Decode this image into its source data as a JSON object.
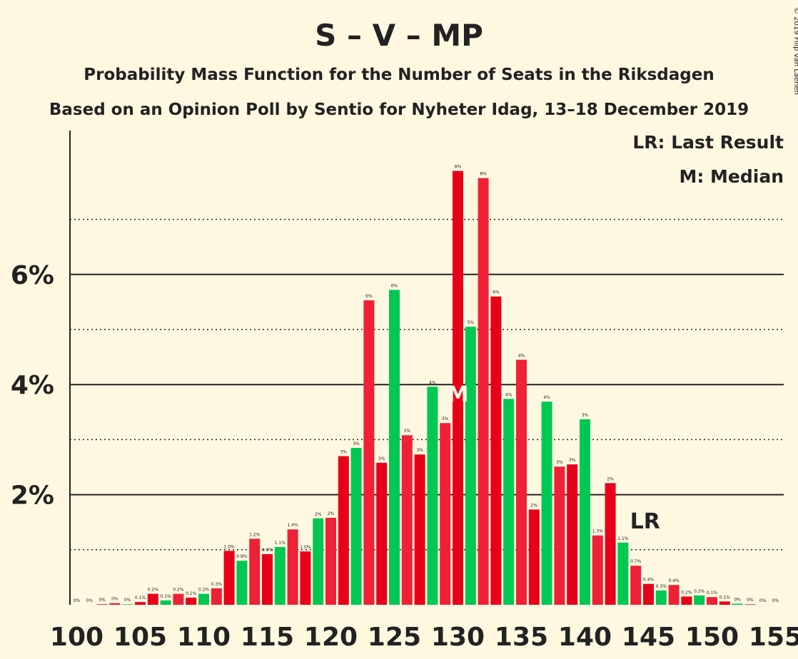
{
  "chart_data": {
    "type": "bar",
    "title": "S – V – MP",
    "subtitle1": "Probability Mass Function for the Number of Seats in the Riksdagen",
    "subtitle2": "Based on an Opinion Poll by Sentio for Nyheter Idag, 13–18 December 2019",
    "copyright": "© 2019 Filip van Laenen",
    "legend": [
      "LR: Last Result",
      "M: Median"
    ],
    "xlim": [
      100,
      155
    ],
    "ylim": [
      0,
      8.5
    ],
    "x_ticks": [
      100,
      105,
      110,
      115,
      120,
      125,
      130,
      135,
      140,
      145,
      150,
      155
    ],
    "y_ticks": [
      2,
      4,
      6
    ],
    "y_tick_labels": [
      "2%",
      "4%",
      "6%"
    ],
    "grid_solid": [
      2,
      4,
      6
    ],
    "grid_dotted": [
      1,
      3,
      5,
      7
    ],
    "median": 130,
    "median_label": "M",
    "last_result": 144,
    "last_result_label": "LR",
    "colors": {
      "red": "#e8001a",
      "red_alt": "#ee2137",
      "green": "#00c853",
      "background": "#fff8e1",
      "text": "#222222"
    },
    "seats": [
      100,
      101,
      102,
      103,
      104,
      105,
      106,
      107,
      108,
      109,
      110,
      111,
      112,
      113,
      114,
      115,
      116,
      117,
      118,
      119,
      120,
      121,
      122,
      123,
      124,
      125,
      126,
      127,
      128,
      129,
      130,
      131,
      132,
      133,
      134,
      135,
      136,
      137,
      138,
      139,
      140,
      141,
      142,
      143,
      144,
      145,
      146,
      147,
      148,
      149,
      150,
      151,
      152,
      153,
      154,
      155
    ],
    "values": [
      0,
      0,
      0.01,
      0.03,
      0.01,
      0.05,
      0.2,
      0.08,
      0.2,
      0.13,
      0.2,
      0.3,
      0.98,
      0.8,
      1.2,
      0.92,
      1.05,
      1.37,
      0.97,
      1.57,
      1.58,
      2.7,
      2.85,
      5.53,
      2.58,
      5.72,
      3.08,
      2.73,
      3.96,
      3.3,
      7.88,
      5.05,
      7.75,
      5.6,
      3.74,
      4.45,
      1.73,
      3.69,
      2.51,
      2.55,
      3.37,
      1.26,
      2.21,
      1.13,
      0.71,
      0.38,
      0.26,
      0.36,
      0.15,
      0.17,
      0.14,
      0.06,
      0.02,
      0.01,
      0,
      0
    ],
    "labels": [
      "0%",
      "0%",
      "0%",
      "0%",
      "0%",
      "0.1%",
      "0.2%",
      "0.1%",
      "0.2%",
      "0.1%",
      "0.2%",
      "0.3%",
      "1.0%",
      "0.8%",
      "1.2%",
      "0.9%",
      "1.1%",
      "1.4%",
      "1.0%",
      "2%",
      "2%",
      "3%",
      "3%",
      "6%",
      "3%",
      "6%",
      "3%",
      "3%",
      "4%",
      "3%",
      "8%",
      "5%",
      "8%",
      "6%",
      "4%",
      "4%",
      "2%",
      "4%",
      "3%",
      "3%",
      "3%",
      "1.3%",
      "2%",
      "1.1%",
      "0.7%",
      "0.4%",
      "0.3%",
      "0.4%",
      "0.2%",
      "0.2%",
      "0.1%",
      "0.1%",
      "0%",
      "0%",
      "0%",
      "0%"
    ],
    "bar_colors": [
      "red",
      "red",
      "red",
      "red_alt",
      "green",
      "red",
      "red",
      "green",
      "red_alt",
      "red",
      "green",
      "red_alt",
      "red",
      "green",
      "red_alt",
      "red",
      "green",
      "red_alt",
      "red",
      "green",
      "red_alt",
      "red",
      "green",
      "red_alt",
      "red",
      "green",
      "red_alt",
      "red",
      "green",
      "red_alt",
      "red",
      "green",
      "red_alt",
      "red",
      "green",
      "red_alt",
      "red",
      "green",
      "red_alt",
      "red",
      "green",
      "red_alt",
      "red",
      "green",
      "red_alt",
      "red",
      "green",
      "red_alt",
      "red",
      "green",
      "red_alt",
      "red",
      "green",
      "red_alt",
      "red",
      "green"
    ]
  }
}
